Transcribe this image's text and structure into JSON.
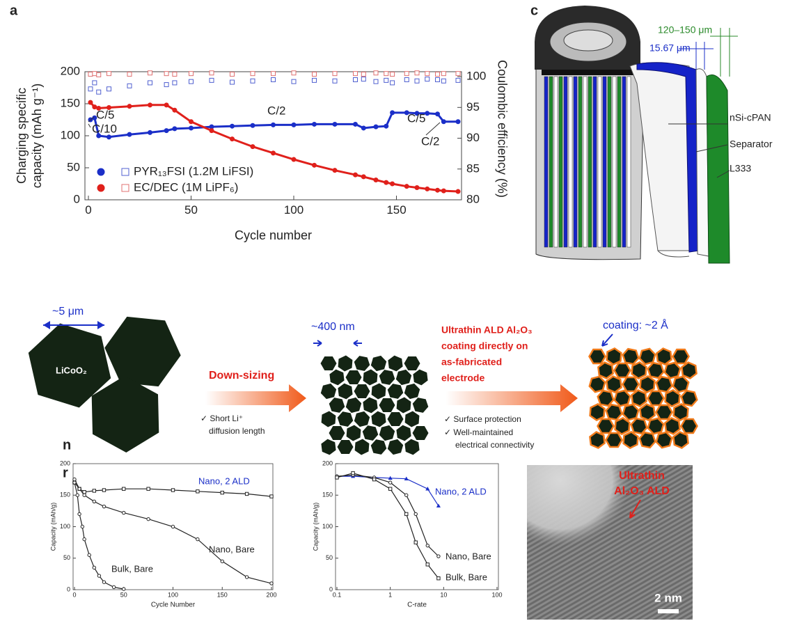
{
  "panel_a": "a",
  "panel_c": "c",
  "cut_off_letters": [
    "n",
    "r"
  ],
  "chart_data": [
    {
      "type": "line",
      "xlabel": "Cycle number",
      "ylabel": [
        "Charging specific",
        "capacity (mAh g⁻¹)"
      ],
      "y2label": "Coulombic efficiency (%)",
      "x": [
        1,
        3,
        5,
        10,
        20,
        30,
        38,
        42,
        50,
        60,
        70,
        80,
        90,
        100,
        110,
        120,
        130,
        134,
        140,
        145,
        148,
        155,
        160,
        165,
        170,
        173,
        180
      ],
      "xlim": [
        0,
        180
      ],
      "xticks": [
        0,
        50,
        100,
        150
      ],
      "ylim": [
        0,
        200
      ],
      "yticks": [
        0,
        50,
        100,
        150,
        200
      ],
      "y2lim": [
        80,
        100.8
      ],
      "y2ticks": [
        80,
        85,
        90,
        95,
        100
      ],
      "series": [
        {
          "name": "PYR₁₃FSI (1.2M LiFSI)",
          "color": "#1b2fc8",
          "marker": "circle",
          "values": [
            125,
            128,
            100,
            98,
            102,
            105,
            108,
            111,
            112,
            114,
            115,
            116,
            117,
            117,
            118,
            118,
            118,
            112,
            114,
            115,
            136,
            136,
            135,
            135,
            134,
            122,
            122
          ]
        },
        {
          "name": "EC/DEC (1M LiPF₆)",
          "color": "#e0201b",
          "marker": "circle",
          "values": [
            152,
            145,
            143,
            144,
            146,
            148,
            148,
            140,
            122,
            108,
            95,
            83,
            73,
            63,
            54,
            46,
            39,
            36,
            31,
            27,
            25,
            21,
            19,
            17,
            15,
            14,
            13
          ]
        },
        {
          "color": "#5060d0",
          "marker": "open-square",
          "axis": "y2",
          "values": [
            98,
            99,
            97.5,
            98,
            98.5,
            99,
            98.7,
            99,
            99.2,
            99.4,
            99.1,
            99.3,
            99.5,
            99.2,
            99.4,
            99.3,
            99.5,
            99.6,
            99.2,
            99.4,
            99,
            99.5,
            99.3,
            99.6,
            99.5,
            99.3,
            99.4
          ]
        },
        {
          "color": "#e07070",
          "marker": "open-square",
          "axis": "y2",
          "values": [
            100.4,
            100.5,
            100.3,
            100.5,
            100.4,
            100.6,
            100.5,
            100.4,
            100.5,
            100.6,
            100.4,
            100.5,
            100.5,
            100.6,
            100.4,
            100.5,
            100.5,
            100.4,
            100.6,
            100.5,
            100.4,
            100.5,
            100.6,
            100.5,
            100.4,
            100.5,
            100.5
          ]
        }
      ],
      "annotations": [
        "C/5",
        "C/10",
        "C/2",
        "C/5",
        "C/2"
      ]
    },
    {
      "type": "line",
      "xlabel": "Cycle Number",
      "ylabel": "Capacity (mAh/g)",
      "xlim": [
        0,
        200
      ],
      "xticks": [
        0,
        50,
        100,
        150,
        200
      ],
      "ylim": [
        0,
        200
      ],
      "yticks": [
        0,
        50,
        100,
        150,
        200
      ],
      "series": [
        {
          "name": "Nano, 2 ALD",
          "color": "#222",
          "marker": "open-square",
          "x": [
            0,
            5,
            10,
            20,
            30,
            50,
            75,
            100,
            125,
            150,
            175,
            200
          ],
          "values": [
            170,
            160,
            155,
            157,
            158,
            160,
            160,
            158,
            156,
            154,
            152,
            148
          ]
        },
        {
          "name": "Nano, Bare",
          "color": "#222",
          "marker": "open-circle",
          "x": [
            0,
            5,
            10,
            20,
            30,
            50,
            75,
            100,
            125,
            150,
            175,
            200
          ],
          "values": [
            175,
            160,
            150,
            140,
            132,
            122,
            112,
            100,
            80,
            45,
            20,
            10
          ]
        },
        {
          "name": "Bulk, Bare",
          "color": "#222",
          "marker": "open-circle",
          "x": [
            0,
            3,
            5,
            8,
            10,
            15,
            20,
            25,
            30,
            40,
            50
          ],
          "values": [
            170,
            150,
            120,
            100,
            80,
            55,
            35,
            22,
            12,
            4,
            1
          ]
        }
      ]
    },
    {
      "type": "line",
      "xlabel": "C-rate",
      "ylabel": "Capacity (mAh/g)",
      "xlog": true,
      "xlim": [
        0.1,
        100
      ],
      "xticks": [
        0.1,
        1,
        10,
        100
      ],
      "ylim": [
        0,
        200
      ],
      "yticks": [
        0,
        50,
        100,
        150,
        200
      ],
      "series": [
        {
          "name": "Nano, 2 ALD",
          "color": "#1b2fc8",
          "marker": "triangle",
          "x": [
            0.1,
            0.2,
            0.5,
            1,
            2,
            5,
            8
          ],
          "values": [
            180,
            180,
            178,
            177,
            176,
            160,
            133
          ]
        },
        {
          "name": "Nano, Bare",
          "color": "#222",
          "marker": "open-circle",
          "x": [
            0.1,
            0.2,
            0.5,
            1,
            2,
            3,
            5,
            8
          ],
          "values": [
            180,
            182,
            178,
            170,
            150,
            120,
            70,
            53
          ]
        },
        {
          "name": "Bulk, Bare",
          "color": "#222",
          "marker": "open-square",
          "x": [
            0.1,
            0.2,
            0.5,
            1,
            2,
            3,
            5,
            8
          ],
          "values": [
            178,
            185,
            175,
            160,
            120,
            75,
            40,
            18
          ]
        }
      ]
    }
  ],
  "panel_c_labels": [
    "120–150 μm",
    "15.67 μm",
    "nSi-cPAN",
    "Separator",
    "L333"
  ],
  "schematic": {
    "bulk_size": "~5 μm",
    "material": "LiCoO₂",
    "step1": "Down-sizing",
    "benefit1": [
      "✓ Short Li⁺",
      "diffusion length"
    ],
    "nano_size": "~400 nm",
    "step2": [
      "Ultrathin ALD Al₂O₃",
      "coating directly on",
      "as-fabricated",
      "electrode"
    ],
    "benefit2": [
      "✓ Surface protection",
      "✓ Well-maintained",
      "electrical connectivity"
    ],
    "coating": "coating: ~2 Å"
  },
  "tem": {
    "label": [
      "Ultrathin",
      "Al₂O₃ ALD"
    ],
    "scale_bar": "2 nm"
  }
}
